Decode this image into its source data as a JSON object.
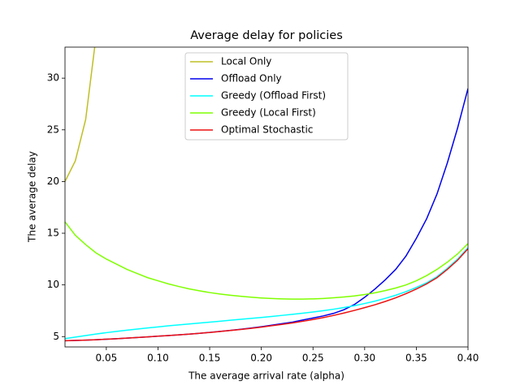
{
  "chart_data": {
    "type": "line",
    "title": "Average delay for policies",
    "x_label": "The average arrival rate (alpha)",
    "y_label": "The average delay",
    "x": [
      0.01,
      0.02,
      0.03,
      0.04,
      0.05,
      0.06,
      0.07,
      0.08,
      0.09,
      0.1,
      0.11,
      0.12,
      0.13,
      0.14,
      0.15,
      0.16,
      0.17,
      0.18,
      0.19,
      0.2,
      0.21,
      0.22,
      0.23,
      0.24,
      0.25,
      0.26,
      0.27,
      0.28,
      0.29,
      0.3,
      0.31,
      0.32,
      0.33,
      0.34,
      0.35,
      0.36,
      0.37,
      0.38,
      0.39,
      0.4
    ],
    "series": [
      {
        "name": "Local Only",
        "color": "#bfbf26",
        "values": [
          20.0,
          22.0,
          26.0,
          34.0,
          null,
          null,
          null,
          null,
          null,
          null,
          null,
          null,
          null,
          null,
          null,
          null,
          null,
          null,
          null,
          null,
          null,
          null,
          null,
          null,
          null,
          null,
          null,
          null,
          null,
          null,
          null,
          null,
          null,
          null,
          null,
          null,
          null,
          null,
          null,
          null
        ]
      },
      {
        "name": "Offload Only",
        "color": "#0000ee",
        "values": [
          4.6,
          4.63,
          4.66,
          4.7,
          4.75,
          4.8,
          4.85,
          4.91,
          4.97,
          5.04,
          5.1,
          5.17,
          5.24,
          5.32,
          5.41,
          5.5,
          5.6,
          5.71,
          5.83,
          5.96,
          6.1,
          6.25,
          6.4,
          6.6,
          6.8,
          7.0,
          7.25,
          7.6,
          8.1,
          8.8,
          9.6,
          10.5,
          11.5,
          12.8,
          14.5,
          16.4,
          18.8,
          21.8,
          25.2,
          29.0
        ]
      },
      {
        "name": "Greedy (Offload First)",
        "color": "#00ffff",
        "values": [
          4.8,
          4.95,
          5.1,
          5.25,
          5.38,
          5.5,
          5.62,
          5.73,
          5.84,
          5.94,
          6.04,
          6.13,
          6.22,
          6.31,
          6.4,
          6.49,
          6.58,
          6.67,
          6.76,
          6.85,
          6.95,
          7.05,
          7.15,
          7.26,
          7.38,
          7.51,
          7.65,
          7.81,
          7.99,
          8.2,
          8.43,
          8.7,
          9.0,
          9.35,
          9.75,
          10.2,
          10.8,
          11.6,
          12.5,
          13.6
        ]
      },
      {
        "name": "Greedy (Local First)",
        "color": "#7fff00",
        "values": [
          16.1,
          14.8,
          13.9,
          13.1,
          12.5,
          12.0,
          11.5,
          11.1,
          10.7,
          10.4,
          10.1,
          9.85,
          9.62,
          9.43,
          9.26,
          9.12,
          9.0,
          8.9,
          8.81,
          8.74,
          8.69,
          8.65,
          8.63,
          8.63,
          8.65,
          8.69,
          8.75,
          8.83,
          8.93,
          9.07,
          9.24,
          9.45,
          9.7,
          10.0,
          10.4,
          10.9,
          11.5,
          12.2,
          13.0,
          14.0
        ]
      },
      {
        "name": "Optimal Stochastic",
        "color": "#ee1111",
        "values": [
          4.6,
          4.63,
          4.66,
          4.7,
          4.75,
          4.8,
          4.85,
          4.91,
          4.97,
          5.04,
          5.1,
          5.17,
          5.24,
          5.32,
          5.4,
          5.49,
          5.59,
          5.69,
          5.8,
          5.92,
          6.05,
          6.18,
          6.32,
          6.48,
          6.65,
          6.84,
          7.05,
          7.28,
          7.53,
          7.8,
          8.08,
          8.4,
          8.75,
          9.15,
          9.6,
          10.1,
          10.7,
          11.5,
          12.4,
          13.5
        ]
      }
    ],
    "xlim": [
      0.01,
      0.4
    ],
    "ylim": [
      4,
      33
    ],
    "xticks": [
      0.05,
      {
        "value": 0.1,
        "label": "0.10"
      },
      0.15,
      {
        "value": 0.2,
        "label": "0.20"
      },
      0.25,
      {
        "value": 0.3,
        "label": "0.30"
      },
      0.35,
      {
        "value": 0.4,
        "label": "0.40"
      }
    ],
    "yticks": [
      5,
      10,
      15,
      20,
      25,
      30
    ],
    "legend_loc": "upper center"
  }
}
